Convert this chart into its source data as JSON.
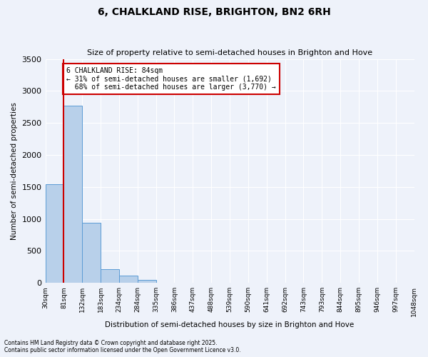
{
  "title": "6, CHALKLAND RISE, BRIGHTON, BN2 6RH",
  "subtitle": "Size of property relative to semi-detached houses in Brighton and Hove",
  "xlabel": "Distribution of semi-detached houses by size in Brighton and Hove",
  "ylabel": "Number of semi-detached properties",
  "bar_color": "#b8d0ea",
  "bar_edge_color": "#5b9bd5",
  "background_color": "#eef2fa",
  "grid_color": "#ffffff",
  "bin_labels": [
    "30sqm",
    "81sqm",
    "132sqm",
    "183sqm",
    "234sqm",
    "284sqm",
    "335sqm",
    "386sqm",
    "437sqm",
    "488sqm",
    "539sqm",
    "590sqm",
    "641sqm",
    "692sqm",
    "743sqm",
    "793sqm",
    "844sqm",
    "895sqm",
    "946sqm",
    "997sqm",
    "1048sqm"
  ],
  "bar_heights": [
    1540,
    2770,
    940,
    210,
    110,
    50,
    0,
    0,
    0,
    0,
    0,
    0,
    0,
    0,
    0,
    0,
    0,
    0,
    0,
    0
  ],
  "property_line_x": 1,
  "property_sqm": 84,
  "property_label": "6 CHALKLAND RISE: 84sqm",
  "pct_smaller": 31,
  "pct_larger": 68,
  "count_smaller": 1692,
  "count_larger": 3770,
  "ylim": [
    0,
    3500
  ],
  "annotation_box_color": "#ffffff",
  "annotation_box_edge": "#cc0000",
  "red_line_color": "#cc0000",
  "footnote1": "Contains HM Land Registry data © Crown copyright and database right 2025.",
  "footnote2": "Contains public sector information licensed under the Open Government Licence v3.0."
}
